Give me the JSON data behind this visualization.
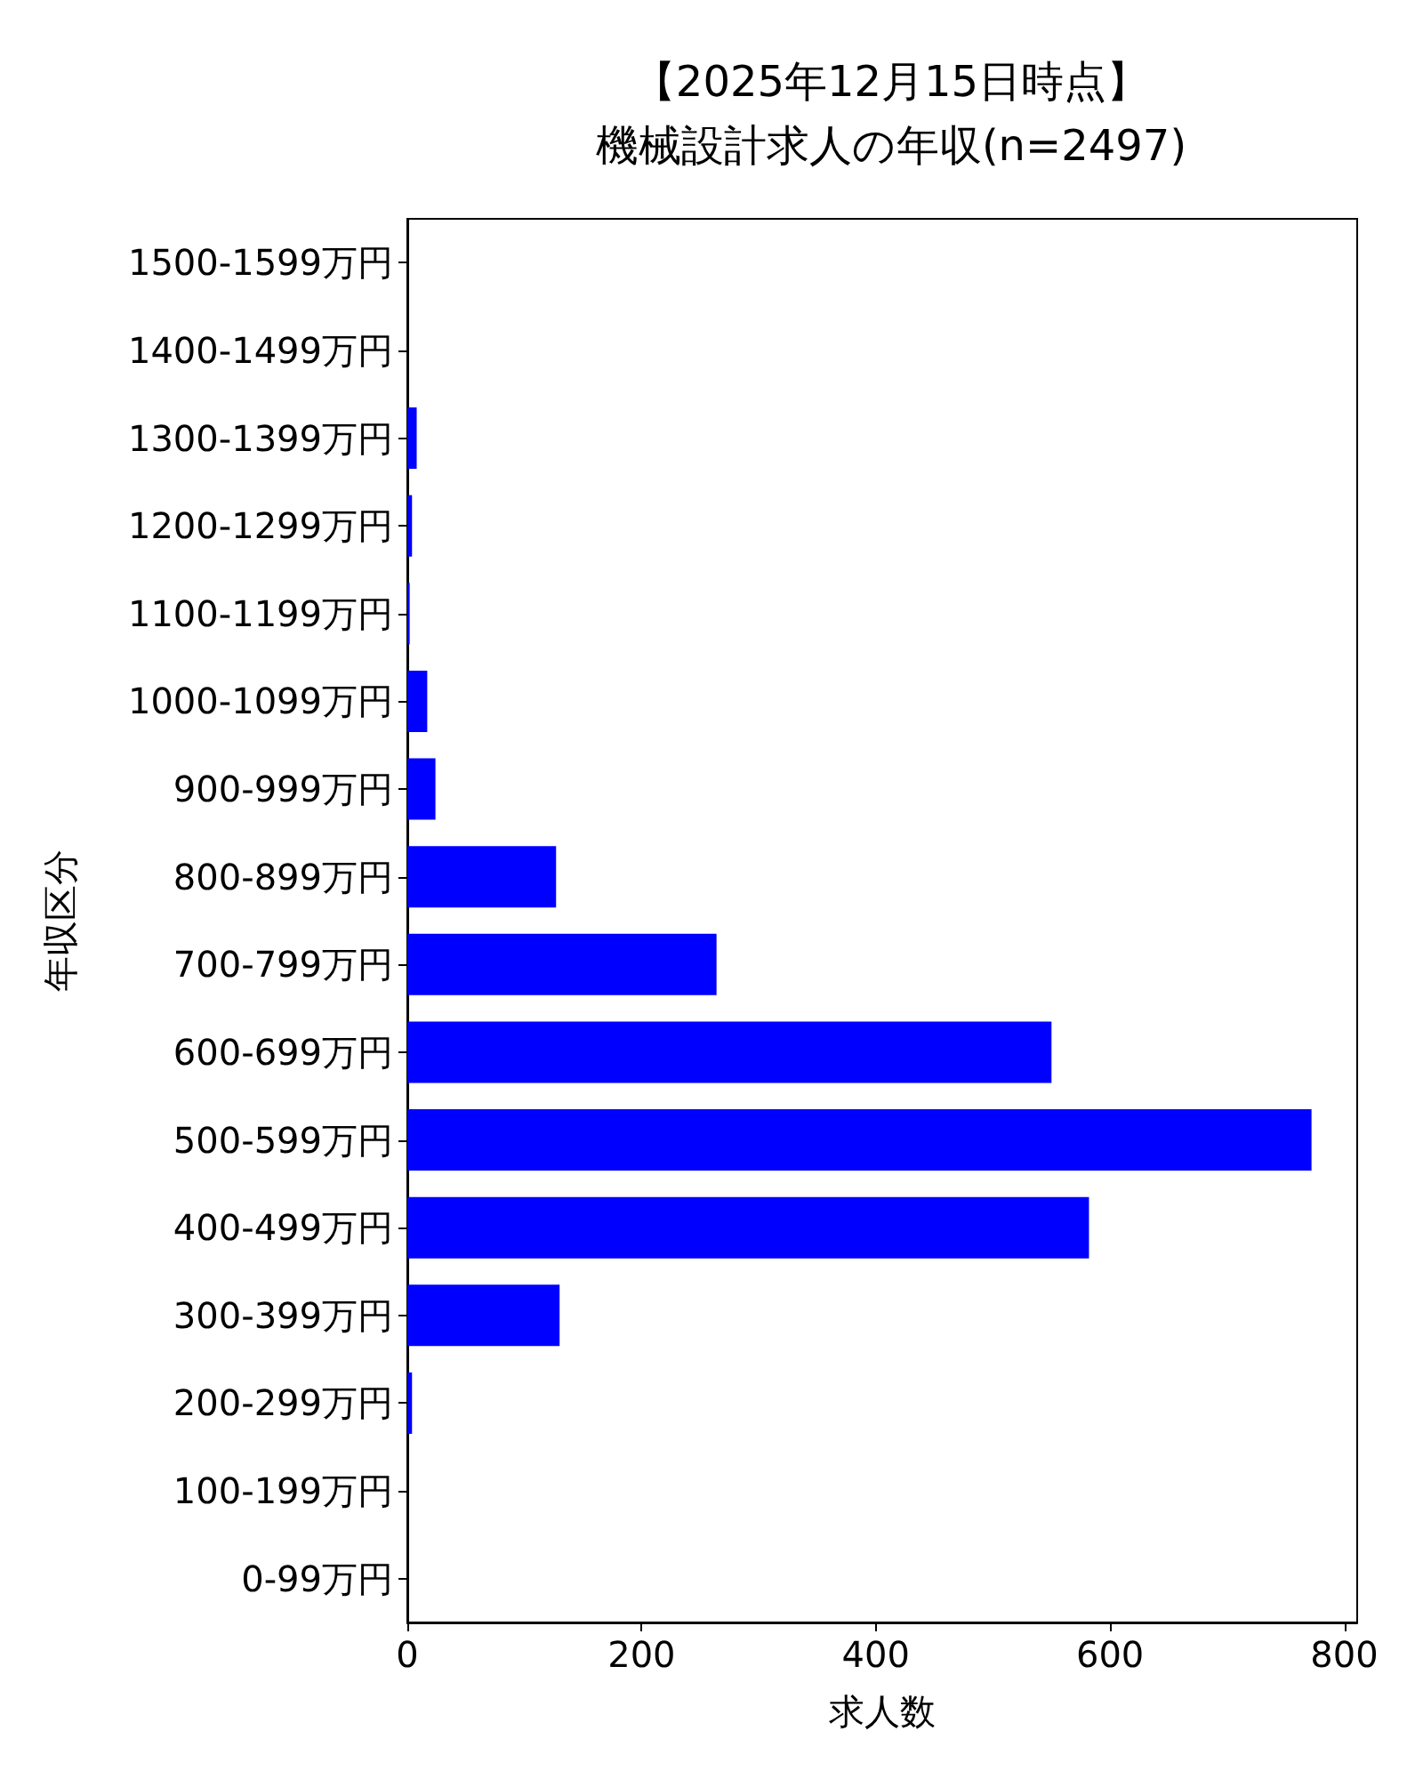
{
  "chart_data": {
    "type": "bar",
    "orientation": "horizontal",
    "title": "【2025年12月15日時点】",
    "subtitle": "機械設計求人の年収(n=2497)",
    "xlabel": "求人数",
    "ylabel": "年収区分",
    "categories": [
      "1500-1599万円",
      "1400-1499万円",
      "1300-1399万円",
      "1200-1299万円",
      "1100-1199万円",
      "1000-1099万円",
      "900-999万円",
      "800-899万円",
      "700-799万円",
      "600-699万円",
      "500-599万円",
      "400-499万円",
      "300-399万円",
      "200-299万円",
      "100-199万円",
      "0-99万円"
    ],
    "values": [
      0,
      0,
      8,
      4,
      2,
      17,
      24,
      127,
      264,
      550,
      772,
      582,
      130,
      4,
      0,
      0
    ],
    "color": "#0000ff",
    "xlim": [
      0,
      811
    ],
    "xticks": [
      0,
      200,
      400,
      600,
      800
    ],
    "grid": false
  }
}
